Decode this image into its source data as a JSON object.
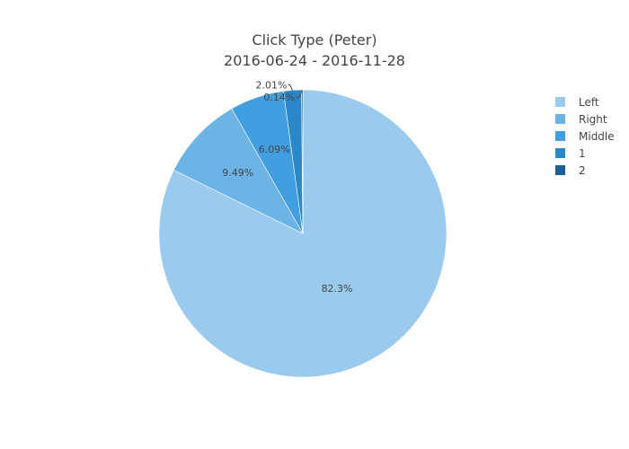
{
  "chart_data": {
    "type": "pie",
    "title": "Click Type (Peter)",
    "subtitle": "2016-06-24 - 2016-11-28",
    "labels": [
      "Left",
      "Right",
      "Middle",
      "1",
      "2"
    ],
    "percent_labels": [
      "82.3%",
      "9.49%",
      "6.09%",
      "2.01%",
      "0.14%"
    ],
    "values": [
      82.3,
      9.49,
      6.09,
      2.01,
      0.14
    ],
    "colors": [
      "#9ACBEE",
      "#6CB3E6",
      "#419EE0",
      "#2A87C9",
      "#1B6196"
    ],
    "direction": "clockwise",
    "start": "top",
    "legend_position": "top-right"
  }
}
